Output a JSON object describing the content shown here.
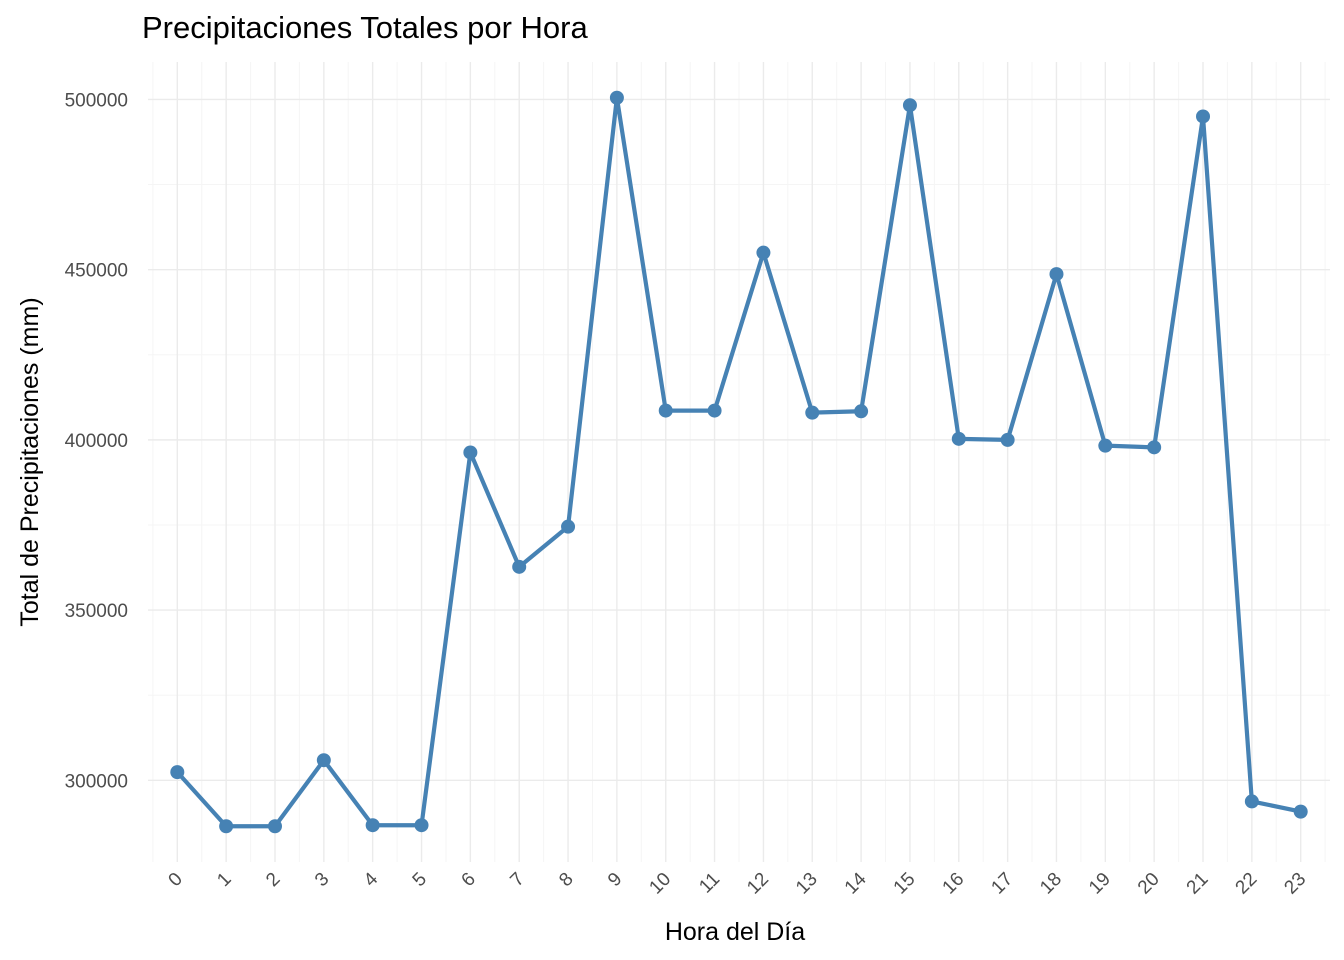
{
  "chart_data": {
    "type": "line",
    "title": "Precipitaciones Totales por Hora",
    "xlabel": "Hora del Día",
    "ylabel": "Total de Precipitaciones (mm)",
    "x": [
      "0",
      "1",
      "2",
      "3",
      "4",
      "5",
      "6",
      "7",
      "8",
      "9",
      "10",
      "11",
      "12",
      "13",
      "14",
      "15",
      "16",
      "17",
      "18",
      "19",
      "20",
      "21",
      "22",
      "23"
    ],
    "series": [
      {
        "values": [
          302400,
          286500,
          286500,
          305900,
          286800,
          286800,
          396300,
          362700,
          374500,
          500500,
          408600,
          408600,
          455000,
          408000,
          408400,
          498300,
          400300,
          400000,
          448700,
          398300,
          397800,
          495000,
          293800,
          290800
        ]
      }
    ],
    "yticks": [
      300000,
      350000,
      400000,
      450000,
      500000
    ],
    "ylim": [
      276000,
      511000
    ],
    "grid": true,
    "legend": "none",
    "colors": {
      "line": "#4682b4",
      "grid_major": "#ebebeb",
      "grid_minor": "#f5f5f5",
      "tick_text": "#4d4d4d"
    }
  }
}
